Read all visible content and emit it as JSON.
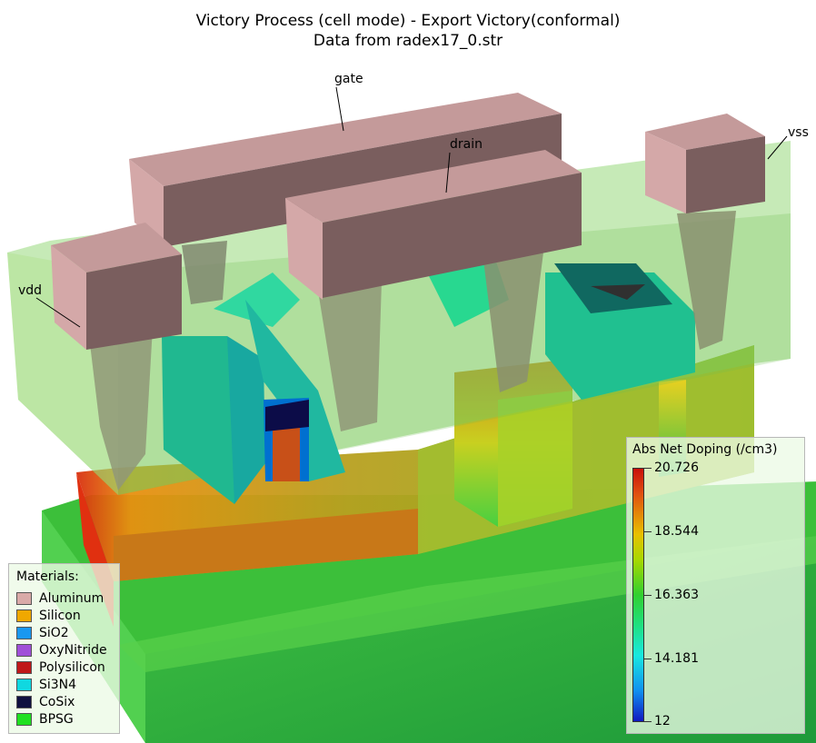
{
  "title": {
    "line1": "Victory Process  (cell mode) - Export Victory(conformal)",
    "line2": "Data from radex17_0.str"
  },
  "labels": {
    "gate": "gate",
    "drain": "drain",
    "vss": "vss",
    "vdd": "vdd"
  },
  "materials": {
    "header": "Materials:",
    "items": [
      {
        "name": "Aluminum",
        "color": "#d9aaa8"
      },
      {
        "name": "Silicon",
        "color": "#f0a800"
      },
      {
        "name": "SiO2",
        "color": "#1898f0"
      },
      {
        "name": "OxyNitride",
        "color": "#a050d8"
      },
      {
        "name": "Polysilicon",
        "color": "#c01818"
      },
      {
        "name": "Si3N4",
        "color": "#10d8e0"
      },
      {
        "name": "CoSix",
        "color": "#101040"
      },
      {
        "name": "BPSG",
        "color": "#20e020"
      }
    ]
  },
  "legend": {
    "header": "Abs Net Doping (/cm3)",
    "values": [
      "20.726",
      "18.544",
      "16.363",
      "14.181",
      "12"
    ]
  }
}
